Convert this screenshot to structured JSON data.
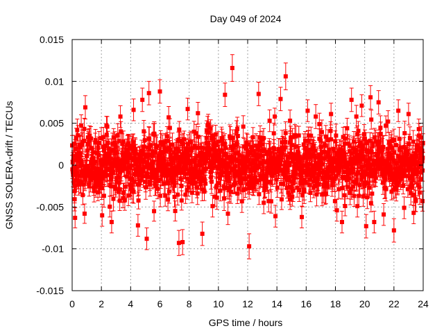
{
  "chart_data": {
    "type": "scatter",
    "title": "Day 049 of 2024",
    "xlabel": "GPS time / hours",
    "ylabel": "GNSS SOLERA-drift / TECUs",
    "xlim": [
      0,
      24
    ],
    "ylim": [
      -0.015,
      0.015
    ],
    "x_ticks": [
      0,
      2,
      4,
      6,
      8,
      10,
      12,
      14,
      16,
      18,
      20,
      22,
      24
    ],
    "x_tick_labels": [
      "0",
      "2",
      "4",
      "6",
      "8",
      "10",
      "12",
      "14",
      "16",
      "18",
      "20",
      "22",
      "24"
    ],
    "y_ticks": [
      -0.015,
      -0.01,
      -0.005,
      0,
      0.005,
      0.01,
      0.015
    ],
    "y_tick_labels": [
      "-0.015",
      "-0.01",
      "-0.005",
      "0",
      "0.005",
      "0.01",
      "0.015"
    ],
    "grid": true,
    "legend": "none",
    "series_color": "#ff0000",
    "points": [
      {
        "x": 0.05,
        "y": -0.0008,
        "err": 0.0012
      },
      {
        "x": 0.2,
        "y": -0.0063,
        "err": 0.0012
      },
      {
        "x": 0.35,
        "y": 0.0042,
        "err": 0.0013
      },
      {
        "x": 0.6,
        "y": -0.0021,
        "err": 0.0012
      },
      {
        "x": 0.9,
        "y": 0.0069,
        "err": 0.0014
      },
      {
        "x": 1.2,
        "y": 0.0035,
        "err": 0.0012
      },
      {
        "x": 1.5,
        "y": -0.0031,
        "err": 0.0013
      },
      {
        "x": 1.8,
        "y": 0.0012,
        "err": 0.0012
      },
      {
        "x": 2.05,
        "y": -0.006,
        "err": 0.0013
      },
      {
        "x": 2.4,
        "y": 0.0046,
        "err": 0.0012
      },
      {
        "x": 2.7,
        "y": -0.0068,
        "err": 0.0013
      },
      {
        "x": 3.0,
        "y": 0.0021,
        "err": 0.0012
      },
      {
        "x": 3.3,
        "y": 0.0058,
        "err": 0.0013
      },
      {
        "x": 3.6,
        "y": -0.0042,
        "err": 0.0012
      },
      {
        "x": 3.9,
        "y": 0.0013,
        "err": 0.0012
      },
      {
        "x": 4.2,
        "y": 0.0066,
        "err": 0.0013
      },
      {
        "x": 4.5,
        "y": -0.0072,
        "err": 0.0013
      },
      {
        "x": 4.8,
        "y": 0.0078,
        "err": 0.0014
      },
      {
        "x": 5.1,
        "y": -0.0088,
        "err": 0.0013
      },
      {
        "x": 5.25,
        "y": 0.0086,
        "err": 0.0014
      },
      {
        "x": 5.6,
        "y": -0.0055,
        "err": 0.0012
      },
      {
        "x": 6.0,
        "y": 0.0088,
        "err": 0.0014
      },
      {
        "x": 6.3,
        "y": -0.0022,
        "err": 0.0012
      },
      {
        "x": 6.6,
        "y": 0.0057,
        "err": 0.0013
      },
      {
        "x": 7.0,
        "y": -0.0038,
        "err": 0.0012
      },
      {
        "x": 7.3,
        "y": -0.0093,
        "err": 0.0015
      },
      {
        "x": 7.55,
        "y": -0.0092,
        "err": 0.0015
      },
      {
        "x": 7.9,
        "y": 0.0067,
        "err": 0.0013
      },
      {
        "x": 8.2,
        "y": -0.0033,
        "err": 0.0012
      },
      {
        "x": 8.6,
        "y": 0.0062,
        "err": 0.0013
      },
      {
        "x": 8.9,
        "y": -0.0082,
        "err": 0.0014
      },
      {
        "x": 9.2,
        "y": 0.0041,
        "err": 0.0012
      },
      {
        "x": 9.6,
        "y": -0.0049,
        "err": 0.0013
      },
      {
        "x": 10.0,
        "y": 0.0028,
        "err": 0.0012
      },
      {
        "x": 10.45,
        "y": 0.0084,
        "err": 0.0014
      },
      {
        "x": 10.65,
        "y": -0.0058,
        "err": 0.0013
      },
      {
        "x": 10.95,
        "y": 0.0116,
        "err": 0.0016
      },
      {
        "x": 11.3,
        "y": -0.0034,
        "err": 0.0012
      },
      {
        "x": 11.7,
        "y": 0.0046,
        "err": 0.0013
      },
      {
        "x": 12.1,
        "y": -0.0097,
        "err": 0.0015
      },
      {
        "x": 12.4,
        "y": 0.0017,
        "err": 0.0012
      },
      {
        "x": 12.75,
        "y": 0.0085,
        "err": 0.0014
      },
      {
        "x": 13.1,
        "y": -0.0045,
        "err": 0.0013
      },
      {
        "x": 13.5,
        "y": 0.0053,
        "err": 0.0013
      },
      {
        "x": 13.9,
        "y": -0.0061,
        "err": 0.0013
      },
      {
        "x": 14.25,
        "y": 0.0079,
        "err": 0.0014
      },
      {
        "x": 14.6,
        "y": 0.0106,
        "err": 0.0016
      },
      {
        "x": 14.9,
        "y": -0.0041,
        "err": 0.0012
      },
      {
        "x": 15.3,
        "y": 0.0035,
        "err": 0.0012
      },
      {
        "x": 15.7,
        "y": -0.0062,
        "err": 0.0013
      },
      {
        "x": 16.1,
        "y": 0.0065,
        "err": 0.0013
      },
      {
        "x": 16.5,
        "y": -0.0027,
        "err": 0.0012
      },
      {
        "x": 16.9,
        "y": 0.0049,
        "err": 0.0013
      },
      {
        "x": 17.3,
        "y": -0.0035,
        "err": 0.0012
      },
      {
        "x": 17.7,
        "y": 0.0061,
        "err": 0.0013
      },
      {
        "x": 18.1,
        "y": -0.0054,
        "err": 0.0013
      },
      {
        "x": 18.45,
        "y": -0.0068,
        "err": 0.0013
      },
      {
        "x": 18.8,
        "y": 0.0044,
        "err": 0.0012
      },
      {
        "x": 19.1,
        "y": 0.0078,
        "err": 0.0014
      },
      {
        "x": 19.5,
        "y": -0.0049,
        "err": 0.0013
      },
      {
        "x": 19.8,
        "y": 0.0071,
        "err": 0.0013
      },
      {
        "x": 20.1,
        "y": -0.0073,
        "err": 0.0014
      },
      {
        "x": 20.4,
        "y": 0.0081,
        "err": 0.0014
      },
      {
        "x": 20.65,
        "y": -0.0068,
        "err": 0.0013
      },
      {
        "x": 20.95,
        "y": 0.0075,
        "err": 0.0014
      },
      {
        "x": 21.3,
        "y": -0.0059,
        "err": 0.0013
      },
      {
        "x": 21.6,
        "y": 0.0052,
        "err": 0.0013
      },
      {
        "x": 22.0,
        "y": -0.0078,
        "err": 0.0014
      },
      {
        "x": 22.3,
        "y": 0.0065,
        "err": 0.0013
      },
      {
        "x": 22.7,
        "y": -0.0051,
        "err": 0.0013
      },
      {
        "x": 23.0,
        "y": 0.0061,
        "err": 0.0013
      },
      {
        "x": 23.35,
        "y": -0.0057,
        "err": 0.0013
      },
      {
        "x": 23.7,
        "y": 0.0043,
        "err": 0.0012
      },
      {
        "x": 23.95,
        "y": -0.0043,
        "err": 0.0012
      }
    ],
    "background_noise": {
      "description": "dense red error-bar markers with values spread roughly between -0.005 and 0.005",
      "x_range": [
        0,
        24
      ],
      "typical_spread": 0.0025,
      "typical_err": 0.0012
    }
  }
}
